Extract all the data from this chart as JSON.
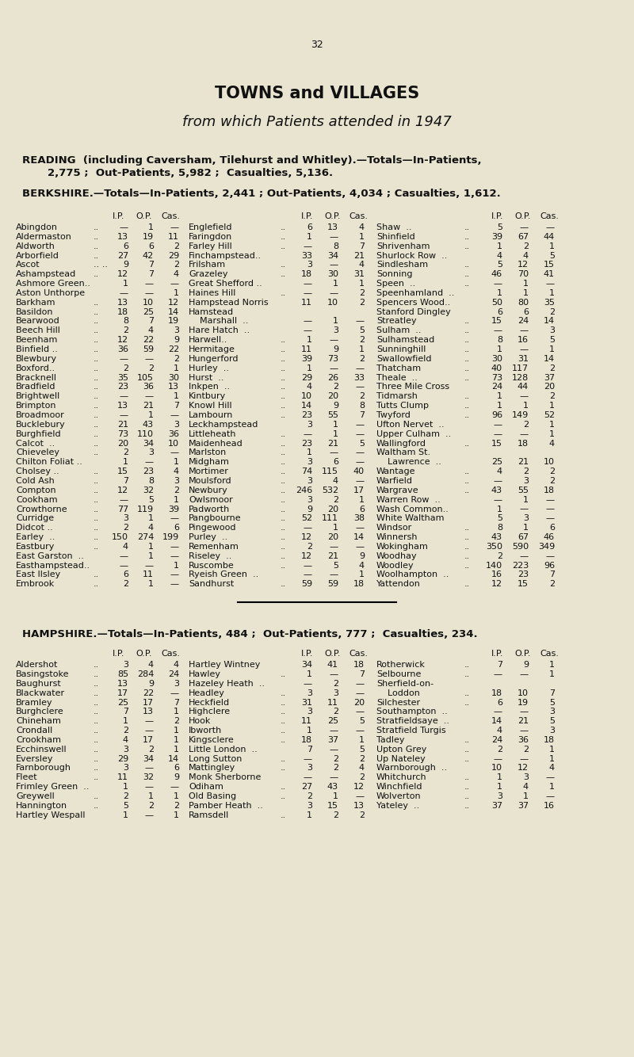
{
  "page_number": "32",
  "title1": "TOWNS and VILLAGES",
  "title2": "from which Patients attended in 1947",
  "bg_color": "#e8e4d0",
  "berkshire_rows_col1": [
    [
      "Abingdon",
      "..",
      "—",
      "1",
      "—"
    ],
    [
      "Aldermaston",
      "..",
      "13",
      "19",
      "11"
    ],
    [
      "Aldworth",
      "..",
      "6",
      "6",
      "2"
    ],
    [
      "Arborfield",
      "..",
      "27",
      "42",
      "29"
    ],
    [
      "Ascot",
      ".. ..",
      "9",
      "7",
      "2"
    ],
    [
      "Ashampstead",
      "..",
      "12",
      "7",
      "4"
    ],
    [
      "Ashmore Green..",
      "",
      "1",
      "—",
      "—"
    ],
    [
      "Aston Unthorpe",
      "",
      "—",
      "—",
      "1"
    ],
    [
      "Barkham",
      "..",
      "13",
      "10",
      "12"
    ],
    [
      "Basildon",
      "..",
      "18",
      "25",
      "14"
    ],
    [
      "Bearwood",
      "..",
      "8",
      "7",
      "19"
    ],
    [
      "Beech Hill",
      "..",
      "2",
      "4",
      "3"
    ],
    [
      "Beenham",
      "..",
      "12",
      "22",
      "9"
    ],
    [
      "Binfield ..",
      "..",
      "36",
      "59",
      "22"
    ],
    [
      "Blewbury",
      "..",
      "—",
      "—",
      "2"
    ],
    [
      "Boxford..",
      "..",
      "2",
      "2",
      "1"
    ],
    [
      "Bracknell",
      "..",
      "35",
      "105",
      "30"
    ],
    [
      "Bradfield",
      "..",
      "23",
      "36",
      "13"
    ],
    [
      "Brightwell",
      "..",
      "—",
      "—",
      "1"
    ],
    [
      "Brimpton",
      "..",
      "13",
      "21",
      "7"
    ],
    [
      "Broadmoor",
      "..",
      "—",
      "1",
      "—"
    ],
    [
      "Bucklebury",
      "..",
      "21",
      "43",
      "3"
    ],
    [
      "Burghfield",
      "..",
      "73",
      "110",
      "36"
    ],
    [
      "Calcot  ..",
      "..",
      "20",
      "34",
      "10"
    ],
    [
      "Chieveley",
      "..",
      "2",
      "3",
      "—"
    ],
    [
      "Chilton Foliat ..",
      "",
      "1",
      "—",
      "1"
    ],
    [
      "Cholsey ..",
      "..",
      "15",
      "23",
      "4"
    ],
    [
      "Cold Ash",
      "..",
      "7",
      "8",
      "3"
    ],
    [
      "Compton",
      "..",
      "12",
      "32",
      "2"
    ],
    [
      "Cookham",
      "..",
      "—",
      "5",
      "1"
    ],
    [
      "Crowthorne",
      "..",
      "77",
      "119",
      "39"
    ],
    [
      "Curridge",
      "..",
      "3",
      "1",
      "—"
    ],
    [
      "Didcot ..",
      "..",
      "2",
      "4",
      "6"
    ],
    [
      "Earley  ..",
      "..",
      "150",
      "274",
      "199"
    ],
    [
      "Eastbury",
      "..",
      "4",
      "1",
      "—"
    ],
    [
      "East Garston  ..",
      "",
      "—",
      "1",
      "—"
    ],
    [
      "Easthampstead..",
      "",
      "—",
      "—",
      "1"
    ],
    [
      "East Ilsley",
      "..",
      "6",
      "11",
      "—"
    ],
    [
      "Embrook",
      "..",
      "2",
      "1",
      "—"
    ]
  ],
  "berkshire_rows_col2": [
    [
      "Englefield",
      "..",
      "6",
      "13",
      "4"
    ],
    [
      "Faringdon",
      "..",
      "1",
      "—",
      "1"
    ],
    [
      "Farley Hill",
      "..",
      "—",
      "8",
      "7"
    ],
    [
      "Finchampstead..",
      "",
      "33",
      "34",
      "21"
    ],
    [
      "Frilsham",
      "..",
      "3",
      "—",
      "4"
    ],
    [
      "Grazeley",
      "..",
      "18",
      "30",
      "31"
    ],
    [
      "Great Shefford ..",
      "",
      "—",
      "1",
      "1"
    ],
    [
      "Haines Hill",
      "..",
      "—",
      "—",
      "2"
    ],
    [
      "Hampstead Norris",
      "",
      "11",
      "10",
      "2"
    ],
    [
      "Hamstead",
      "",
      "",
      "",
      ""
    ],
    [
      "    Marshall  ..",
      "",
      "—",
      "1",
      "—"
    ],
    [
      "Hare Hatch  ..",
      "",
      "—",
      "3",
      "5"
    ],
    [
      "Harwell..",
      "..",
      "1",
      "—",
      "2"
    ],
    [
      "Hermitage",
      "..",
      "11",
      "9",
      "1"
    ],
    [
      "Hungerford",
      "..",
      "39",
      "73",
      "2"
    ],
    [
      "Hurley  ..",
      "..",
      "1",
      "—",
      "—"
    ],
    [
      "Hurst  ..",
      "..",
      "29",
      "26",
      "33"
    ],
    [
      "Inkpen  ..",
      "..",
      "4",
      "2",
      "—"
    ],
    [
      "Kintbury",
      "..",
      "10",
      "20",
      "2"
    ],
    [
      "Knowl Hill",
      "..",
      "14",
      "9",
      "8"
    ],
    [
      "Lambourn",
      "..",
      "23",
      "55",
      "7"
    ],
    [
      "Leckhampstead",
      "",
      "3",
      "1",
      "—"
    ],
    [
      "Littleheath",
      "..",
      "—",
      "1",
      "—"
    ],
    [
      "Maidenhead",
      "..",
      "23",
      "21",
      "5"
    ],
    [
      "Marlston",
      "..",
      "1",
      "—",
      "—"
    ],
    [
      "Midgham",
      "..",
      "3",
      "6",
      "—"
    ],
    [
      "Mortimer",
      "..",
      "74",
      "115",
      "40"
    ],
    [
      "Moulsford",
      "..",
      "3",
      "4",
      "—"
    ],
    [
      "Newbury",
      "..",
      "246",
      "532",
      "17"
    ],
    [
      "Owlsmoor",
      "..",
      "3",
      "2",
      "1"
    ],
    [
      "Padworth",
      "..",
      "9",
      "20",
      "6"
    ],
    [
      "Pangbourne",
      "..",
      "52",
      "111",
      "38"
    ],
    [
      "Pingewood",
      "..",
      "—",
      "1",
      "—"
    ],
    [
      "Purley  ..",
      "..",
      "12",
      "20",
      "14"
    ],
    [
      "Remenham",
      "..",
      "2",
      "—",
      "—"
    ],
    [
      "Riseley  ..",
      "..",
      "12",
      "21",
      "9"
    ],
    [
      "Ruscombe",
      "..",
      "—",
      "5",
      "4"
    ],
    [
      "Ryeish Green  ..",
      "",
      "—",
      "—",
      "1"
    ],
    [
      "Sandhurst",
      "..",
      "59",
      "59",
      "18"
    ]
  ],
  "berkshire_rows_col3": [
    [
      "Shaw  ..",
      "..",
      "5",
      "—",
      "—"
    ],
    [
      "Shinfield",
      "..",
      "39",
      "67",
      "44"
    ],
    [
      "Shrivenham",
      "..",
      "1",
      "2",
      "1"
    ],
    [
      "Shurlock Row  ..",
      "",
      "4",
      "4",
      "5"
    ],
    [
      "Sindlesham",
      "..",
      "5",
      "12",
      "15"
    ],
    [
      "Sonning",
      "..",
      "46",
      "70",
      "41"
    ],
    [
      "Speen  ..",
      "..",
      "—",
      "1",
      "—"
    ],
    [
      "Speenhamland  ..",
      "",
      "1",
      "1",
      "1"
    ],
    [
      "Spencers Wood..",
      "",
      "50",
      "80",
      "35"
    ],
    [
      "Stanford Dingley",
      "",
      "6",
      "6",
      "2"
    ],
    [
      "Streatley",
      "..",
      "15",
      "24",
      "14"
    ],
    [
      "Sulham  ..",
      "..",
      "—",
      "—",
      "3"
    ],
    [
      "Sulhamstead",
      "..",
      "8",
      "16",
      "5"
    ],
    [
      "Sunninghill",
      "..",
      "1",
      "—",
      "1"
    ],
    [
      "Swallowfield",
      "..",
      "30",
      "31",
      "14"
    ],
    [
      "Thatcham",
      "..",
      "40",
      "117",
      "2"
    ],
    [
      "Theale  ..",
      "..",
      "73",
      "128",
      "37"
    ],
    [
      "Three Mile Cross",
      "",
      "24",
      "44",
      "20"
    ],
    [
      "Tidmarsh",
      "..",
      "1",
      "—",
      "2"
    ],
    [
      "Tutts Clump",
      "..",
      "1",
      "1",
      "1"
    ],
    [
      "Twyford",
      "..",
      "96",
      "149",
      "52"
    ],
    [
      "Ufton Nervet  ..",
      "",
      "—",
      "2",
      "1"
    ],
    [
      "Upper Culham  ..",
      "",
      "—",
      "—",
      "1"
    ],
    [
      "Wallingford",
      "..",
      "15",
      "18",
      "4"
    ],
    [
      "Waltham St.",
      "",
      "",
      "",
      ""
    ],
    [
      "    Lawrence  ..",
      "",
      "25",
      "21",
      "10"
    ],
    [
      "Wantage",
      "..",
      "4",
      "2",
      "2"
    ],
    [
      "Warfield",
      "..",
      "—",
      "3",
      "2"
    ],
    [
      "Wargrave",
      "..",
      "43",
      "55",
      "18"
    ],
    [
      "Warren Row  ..",
      "",
      "—",
      "1",
      "—"
    ],
    [
      "Wash Common..",
      "",
      "1",
      "—",
      "—"
    ],
    [
      "White Waltham",
      "",
      "5",
      "3",
      "—"
    ],
    [
      "Windsor",
      "..",
      "8",
      "1",
      "6"
    ],
    [
      "Winnersh",
      "..",
      "43",
      "67",
      "46"
    ],
    [
      "Wokingham",
      "..",
      "350",
      "590",
      "349"
    ],
    [
      "Woodhay",
      "..",
      "2",
      "—",
      "—"
    ],
    [
      "Woodley",
      "..",
      "140",
      "223",
      "96"
    ],
    [
      "Woolhampton  ..",
      "",
      "16",
      "23",
      "7"
    ],
    [
      "Yattendon",
      "..",
      "12",
      "15",
      "2"
    ]
  ],
  "hampshire_rows_col1": [
    [
      "Aldershot",
      "..",
      "3",
      "4",
      "4"
    ],
    [
      "Basingstoke",
      "..",
      "85",
      "284",
      "24"
    ],
    [
      "Baughurst",
      "..",
      "13",
      "9",
      "3"
    ],
    [
      "Blackwater",
      "..",
      "17",
      "22",
      "—"
    ],
    [
      "Bramley",
      "..",
      "25",
      "17",
      "7"
    ],
    [
      "Burghclere",
      "..",
      "7",
      "13",
      "1"
    ],
    [
      "Chineham",
      "..",
      "1",
      "—",
      "2"
    ],
    [
      "Crondall",
      "..",
      "2",
      "—",
      "1"
    ],
    [
      "Crookham",
      "..",
      "4",
      "17",
      "1"
    ],
    [
      "Ecchinswell",
      "..",
      "3",
      "2",
      "1"
    ],
    [
      "Eversley",
      "..",
      "29",
      "34",
      "14"
    ],
    [
      "Farnborough",
      "..",
      "3",
      "—",
      "6"
    ],
    [
      "Fleet",
      "..",
      "11",
      "32",
      "9"
    ],
    [
      "Frimley Green  ..",
      "",
      "1",
      "—",
      "—"
    ],
    [
      "Greywell",
      "..",
      "2",
      "1",
      "1"
    ],
    [
      "Hannington",
      "..",
      "5",
      "2",
      "2"
    ],
    [
      "Hartley Wespall",
      "",
      "1",
      "—",
      "1"
    ]
  ],
  "hampshire_rows_col2": [
    [
      "Hartley Wintney",
      "",
      "34",
      "41",
      "18"
    ],
    [
      "Hawley",
      "..",
      "1",
      "—",
      "7"
    ],
    [
      "Hazeley Heath  ..",
      "",
      "—",
      "2",
      "—"
    ],
    [
      "Headley",
      "..",
      "3",
      "3",
      "—"
    ],
    [
      "Heckfield",
      "..",
      "31",
      "11",
      "20"
    ],
    [
      "Highclere",
      "..",
      "3",
      "2",
      "—"
    ],
    [
      "Hook",
      "..",
      "11",
      "25",
      "5"
    ],
    [
      "Ibworth",
      "..",
      "1",
      "—",
      "—"
    ],
    [
      "Kingsclere",
      "..",
      "18",
      "37",
      "1"
    ],
    [
      "Little London  ..",
      "",
      "7",
      "—",
      "5"
    ],
    [
      "Long Sutton",
      "..",
      "—",
      "2",
      "2"
    ],
    [
      "Mattingley",
      "..",
      "3",
      "2",
      "4"
    ],
    [
      "Monk Sherborne",
      "",
      "—",
      "—",
      "2"
    ],
    [
      "Odiham",
      "..",
      "27",
      "43",
      "12"
    ],
    [
      "Old Basing",
      "..",
      "2",
      "1",
      "—"
    ],
    [
      "Pamber Heath  ..",
      "",
      "3",
      "15",
      "13"
    ],
    [
      "Ramsdell",
      "..",
      "1",
      "2",
      "2"
    ]
  ],
  "hampshire_rows_col3": [
    [
      "Rotherwick",
      "..",
      "7",
      "9",
      "1"
    ],
    [
      "Selbourne",
      "..",
      "—",
      "—",
      "1"
    ],
    [
      "Sherfield-on-",
      "",
      "",
      "",
      ""
    ],
    [
      "    Loddon",
      "..",
      "18",
      "10",
      "7"
    ],
    [
      "Silchester",
      "..",
      "6",
      "19",
      "5"
    ],
    [
      "Southampton  ..",
      "",
      "—",
      "—",
      "3"
    ],
    [
      "Stratfieldsaye  ..",
      "",
      "14",
      "21",
      "5"
    ],
    [
      "Stratfield Turgis",
      "",
      "4",
      "—",
      "3"
    ],
    [
      "Tadley",
      "..",
      "24",
      "36",
      "18"
    ],
    [
      "Upton Grey",
      "..",
      "2",
      "2",
      "1"
    ],
    [
      "Up Nateley",
      "..",
      "—",
      "—",
      "1"
    ],
    [
      "Warnborough  ..",
      "",
      "10",
      "12",
      "4"
    ],
    [
      "Whitchurch",
      "..",
      "1",
      "3",
      "—"
    ],
    [
      "Winchfield",
      "..",
      "1",
      "4",
      "1"
    ],
    [
      "Wolverton",
      "..",
      "3",
      "1",
      "—"
    ],
    [
      "Yateley  ..",
      "..",
      "37",
      "37",
      "16"
    ],
    [
      "",
      "",
      "",
      "",
      ""
    ]
  ]
}
